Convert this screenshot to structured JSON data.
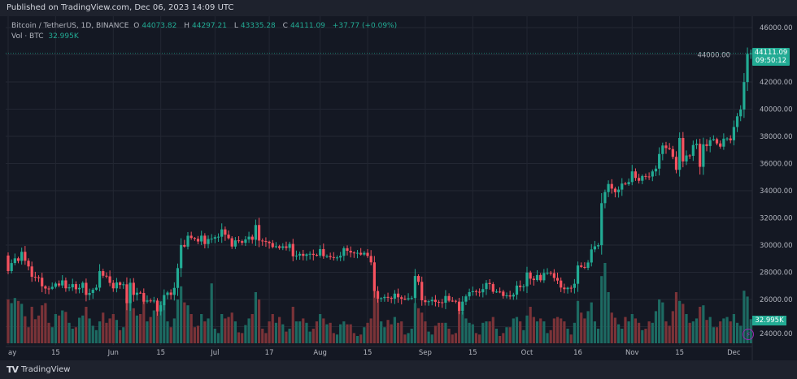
{
  "header": {
    "published": "Published on TradingView.com, Dec 06, 2023 14:09 UTC"
  },
  "legend": {
    "symbol": "Bitcoin / TetherUS, 1D, BINANCE",
    "o_label": "O",
    "o": "44073.82",
    "h_label": "H",
    "h": "44297.21",
    "l_label": "L",
    "l": "43335.28",
    "c_label": "C",
    "c": "44111.09",
    "change": "+37.77 (+0.09%)",
    "vol_label": "Vol · BTC",
    "vol": "32.995K"
  },
  "price_tag": {
    "price": "44111.09",
    "countdown": "09:50:12"
  },
  "volume_tag": "32.995K",
  "footer": {
    "brand": "TradingView"
  },
  "colors": {
    "up": "#22ab94",
    "down": "#f7525f",
    "up_volume": "#1d6a62",
    "down_volume": "#7a3338",
    "background": "#141823",
    "grid": "#232733"
  },
  "chart_data": {
    "type": "candlestick",
    "title": "Bitcoin / TetherUS, 1D, BINANCE",
    "ylim": [
      23000,
      47000
    ],
    "y_ticks": [
      "46000.00",
      "44000.00",
      "42000.00",
      "40000.00",
      "38000.00",
      "36000.00",
      "34000.00",
      "32000.00",
      "30000.00",
      "28000.00",
      "26000.00",
      "24000.00"
    ],
    "x_ticks": [
      {
        "label": "ay",
        "date": "2023-05-01"
      },
      {
        "label": "15",
        "date": "2023-05-15"
      },
      {
        "label": "Jun",
        "date": "2023-06-01"
      },
      {
        "label": "15",
        "date": "2023-06-15"
      },
      {
        "label": "Jul",
        "date": "2023-07-01"
      },
      {
        "label": "17",
        "date": "2023-07-17"
      },
      {
        "label": "Aug",
        "date": "2023-08-01"
      },
      {
        "label": "15",
        "date": "2023-08-15"
      },
      {
        "label": "Sep",
        "date": "2023-09-01"
      },
      {
        "label": "15",
        "date": "2023-09-15"
      },
      {
        "label": "Oct",
        "date": "2023-10-01"
      },
      {
        "label": "16",
        "date": "2023-10-16"
      },
      {
        "label": "Nov",
        "date": "2023-11-01"
      },
      {
        "label": "15",
        "date": "2023-11-15"
      },
      {
        "label": "Dec",
        "date": "2023-12-01"
      }
    ],
    "grid": true,
    "first_open": 29233,
    "close": [
      28091,
      28680,
      29026,
      28838,
      29505,
      28848,
      28430,
      27668,
      27628,
      27599,
      26968,
      26805,
      26784,
      26930,
      27170,
      27033,
      27404,
      26821,
      26890,
      27130,
      26753,
      26851,
      27225,
      26334,
      26476,
      26719,
      26868,
      28085,
      27745,
      27702,
      27219,
      26819,
      27249,
      27069,
      27115,
      25728,
      27230,
      26339,
      26498,
      26477,
      25841,
      25925,
      25902,
      25918,
      25124,
      25576,
      26327,
      26510,
      26336,
      26851,
      28307,
      30007,
      29890,
      30688,
      30527,
      30462,
      30267,
      30693,
      30078,
      30446,
      30472,
      30585,
      30617,
      31156,
      30767,
      30505,
      29895,
      30346,
      30292,
      30171,
      30414,
      30620,
      30391,
      31476,
      30334,
      30295,
      30249,
      30145,
      29856,
      29913,
      29792,
      29908,
      29791,
      30083,
      29176,
      29228,
      29354,
      29210,
      29319,
      29357,
      29278,
      29230,
      29705,
      29186,
      29193,
      29114,
      29072,
      29088,
      29211,
      29770,
      29581,
      29452,
      29428,
      29430,
      29303,
      29430,
      29200,
      28730,
      26623,
      26054,
      26100,
      26189,
      26125,
      26055,
      26431,
      26163,
      26049,
      26008,
      26089,
      26106,
      27728,
      27297,
      25940,
      25805,
      25869,
      25971,
      25826,
      25792,
      25759,
      26255,
      25910,
      25901,
      25841,
      25162,
      25840,
      26228,
      26539,
      26608,
      26568,
      26527,
      26762,
      27211,
      27132,
      26567,
      26580,
      26579,
      26256,
      26298,
      26217,
      26352,
      27021,
      26911,
      26967,
      27983,
      27530,
      27429,
      27799,
      27412,
      27946,
      27968,
      27935,
      27584,
      27391,
      26875,
      26759,
      26862,
      26852,
      27154,
      28500,
      28395,
      28328,
      28719,
      29682,
      29909,
      29993,
      33086,
      33902,
      34495,
      34152,
      33892,
      34082,
      34526,
      34475,
      34639,
      35421,
      34941,
      34733,
      35082,
      35047,
      35044,
      35419,
      35624,
      36700,
      37325,
      37138,
      37061,
      36491,
      35538,
      37880,
      36154,
      36596,
      36566,
      37360,
      37450,
      35756,
      37414,
      37289,
      37720,
      37796,
      37479,
      37242,
      37832,
      37847,
      37713,
      38688,
      39476,
      39973,
      41991,
      44073,
      44111.09
    ],
    "volume_k": [
      60,
      55,
      62,
      58,
      54,
      37,
      22,
      50,
      33,
      38,
      52,
      55,
      28,
      22,
      40,
      38,
      45,
      43,
      28,
      20,
      22,
      35,
      38,
      50,
      34,
      24,
      18,
      30,
      42,
      28,
      34,
      40,
      32,
      18,
      22,
      62,
      68,
      48,
      38,
      40,
      66,
      30,
      36,
      45,
      55,
      58,
      56,
      30,
      22,
      34,
      60,
      78,
      56,
      52,
      40,
      22,
      24,
      40,
      30,
      34,
      82,
      20,
      14,
      40,
      34,
      36,
      42,
      30,
      15,
      14,
      25,
      34,
      40,
      70,
      60,
      20,
      14,
      30,
      40,
      28,
      36,
      26,
      16,
      20,
      50,
      30,
      30,
      34,
      28,
      16,
      20,
      30,
      40,
      34,
      26,
      28,
      14,
      12,
      26,
      30,
      26,
      26,
      14,
      10,
      12,
      22,
      28,
      34,
      88,
      70,
      30,
      22,
      32,
      26,
      36,
      28,
      30,
      12,
      14,
      20,
      55,
      48,
      42,
      30,
      16,
      12,
      24,
      28,
      28,
      28,
      20,
      12,
      14,
      50,
      44,
      34,
      28,
      26,
      14,
      12,
      28,
      30,
      30,
      36,
      20,
      10,
      14,
      22,
      22,
      34,
      36,
      30,
      18,
      38,
      50,
      36,
      30,
      34,
      30,
      14,
      18,
      34,
      36,
      34,
      30,
      20,
      12,
      28,
      58,
      42,
      34,
      44,
      56,
      30,
      20,
      92,
      110,
      70,
      42,
      35,
      26,
      20,
      36,
      30,
      40,
      34,
      28,
      18,
      20,
      30,
      28,
      44,
      60,
      56,
      30,
      24,
      44,
      70,
      58,
      54,
      40,
      28,
      30,
      34,
      50,
      52,
      32,
      36,
      22,
      22,
      30,
      34,
      36,
      30,
      40,
      28,
      24,
      72,
      64,
      32.995
    ]
  }
}
